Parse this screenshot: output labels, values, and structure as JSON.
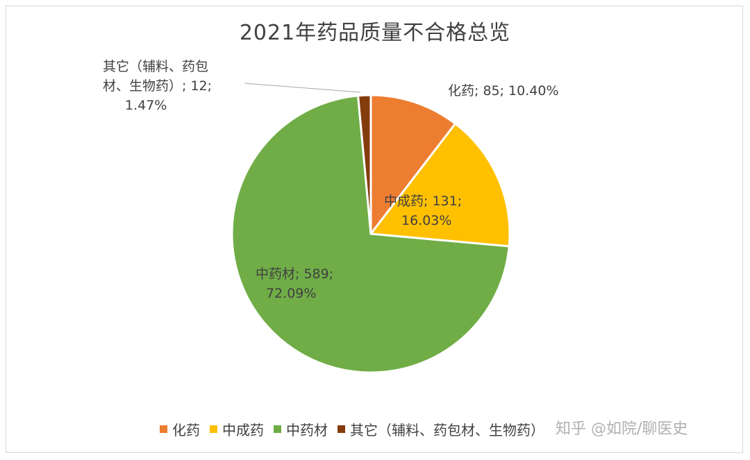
{
  "chart_data": {
    "type": "pie",
    "title": "2021年药品质量不合格总览",
    "series": [
      {
        "name": "化药",
        "value": 85,
        "percent": "10.40%",
        "color": "#ED7D31"
      },
      {
        "name": "中成药",
        "value": 131,
        "percent": "16.03%",
        "color": "#FFC000"
      },
      {
        "name": "中药材",
        "value": 589,
        "percent": "72.09%",
        "color": "#70AD47"
      },
      {
        "name": "其它（辅料、药包材、生物药）",
        "value": 12,
        "percent": "1.47%",
        "color": "#843C0C"
      }
    ],
    "data_labels": {
      "huayao": "化药; 85; 10.40%",
      "zhongchengyao_line1": "中成药; 131;",
      "zhongchengyao_line2": "16.03%",
      "zhongyaocai_line1": "中药材; 589;",
      "zhongyaocai_line2": "72.09%",
      "qita_line1": "其它（辅料、药包",
      "qita_line2": "材、生物药）; 12;",
      "qita_line3": "1.47%"
    },
    "legend_position": "bottom"
  },
  "watermark": "知乎 @如院/聊医史"
}
